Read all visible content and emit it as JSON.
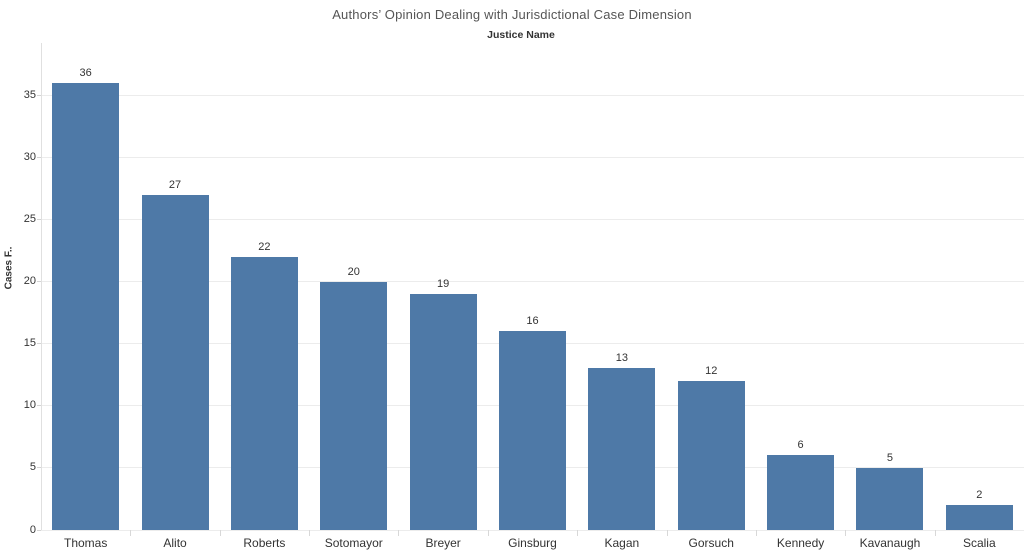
{
  "title": "Authors’ Opinion Dealing with Jurisdictional Case Dimension",
  "column_field_label": "Justice Name",
  "chart_data": {
    "type": "bar",
    "title": "Authors’ Opinion Dealing with Jurisdictional Case Dimension",
    "xlabel": "Justice Name",
    "ylabel": "Cases F..",
    "categories": [
      "Thomas",
      "Alito",
      "Roberts",
      "Sotomayor",
      "Breyer",
      "Ginsburg",
      "Kagan",
      "Gorsuch",
      "Kennedy",
      "Kavanaugh",
      "Scalia"
    ],
    "values": [
      36,
      27,
      22,
      20,
      19,
      16,
      13,
      12,
      6,
      5,
      2
    ],
    "yticks": [
      0,
      5,
      10,
      15,
      20,
      25,
      30,
      35
    ],
    "ylim": [
      0,
      39.2
    ],
    "grid": "horizontal",
    "legend": "none",
    "value_labels": true,
    "bar_color": "#4e79a7",
    "colors": {
      "bar": "#4e79a7",
      "title_text": "#555555",
      "label_text": "#333333",
      "gridline": "#ececec",
      "axis_line": "#e0e0e0"
    }
  }
}
